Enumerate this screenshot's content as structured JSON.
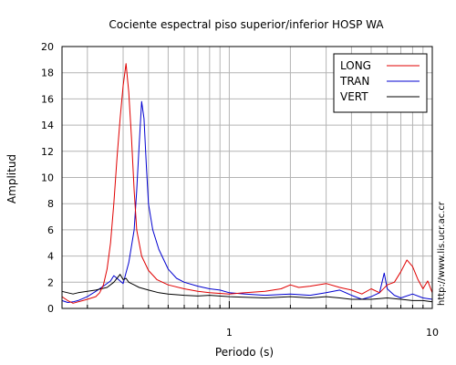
{
  "chart_data": {
    "type": "line",
    "title": "Cociente espectral piso superior/inferior  HOSP WA",
    "xlabel": "Periodo (s)",
    "ylabel": "Amplitud",
    "xscale": "log",
    "xlim": [
      0.15,
      10
    ],
    "ylim": [
      0,
      20
    ],
    "x_ticks": [
      1,
      10
    ],
    "x_tick_labels": [
      "1",
      "10"
    ],
    "y_ticks": [
      0,
      2,
      4,
      6,
      8,
      10,
      12,
      14,
      16,
      18,
      20
    ],
    "y_tick_labels": [
      "0",
      "2",
      "4",
      "6",
      "8",
      "10",
      "12",
      "14",
      "16",
      "18",
      "20"
    ],
    "grid": true,
    "legend_position": "top-right",
    "credit": "http://www.lis.ucr.ac.cr",
    "series": [
      {
        "name": "LONG",
        "color": "#e00000",
        "points": [
          [
            0.15,
            0.9
          ],
          [
            0.16,
            0.6
          ],
          [
            0.17,
            0.4
          ],
          [
            0.18,
            0.5
          ],
          [
            0.19,
            0.6
          ],
          [
            0.2,
            0.7
          ],
          [
            0.21,
            0.8
          ],
          [
            0.22,
            0.9
          ],
          [
            0.23,
            1.2
          ],
          [
            0.24,
            1.8
          ],
          [
            0.25,
            3.0
          ],
          [
            0.26,
            5.0
          ],
          [
            0.27,
            8.0
          ],
          [
            0.28,
            11.5
          ],
          [
            0.29,
            14.5
          ],
          [
            0.3,
            17.0
          ],
          [
            0.31,
            18.7
          ],
          [
            0.32,
            16.5
          ],
          [
            0.33,
            13.0
          ],
          [
            0.34,
            9.0
          ],
          [
            0.35,
            6.0
          ],
          [
            0.37,
            4.0
          ],
          [
            0.4,
            2.9
          ],
          [
            0.44,
            2.2
          ],
          [
            0.5,
            1.8
          ],
          [
            0.6,
            1.5
          ],
          [
            0.7,
            1.3
          ],
          [
            0.8,
            1.2
          ],
          [
            1.0,
            1.1
          ],
          [
            1.2,
            1.2
          ],
          [
            1.5,
            1.3
          ],
          [
            1.8,
            1.5
          ],
          [
            2.0,
            1.8
          ],
          [
            2.2,
            1.6
          ],
          [
            2.5,
            1.7
          ],
          [
            3.0,
            1.9
          ],
          [
            3.5,
            1.6
          ],
          [
            4.0,
            1.4
          ],
          [
            4.5,
            1.1
          ],
          [
            5.0,
            1.5
          ],
          [
            5.5,
            1.2
          ],
          [
            6.0,
            1.8
          ],
          [
            6.5,
            2.0
          ],
          [
            7.0,
            2.8
          ],
          [
            7.5,
            3.7
          ],
          [
            8.0,
            3.2
          ],
          [
            8.5,
            2.2
          ],
          [
            9.0,
            1.5
          ],
          [
            9.5,
            2.1
          ],
          [
            10.0,
            1.2
          ]
        ]
      },
      {
        "name": "TRAN",
        "color": "#0000d0",
        "points": [
          [
            0.15,
            0.6
          ],
          [
            0.16,
            0.45
          ],
          [
            0.17,
            0.5
          ],
          [
            0.18,
            0.6
          ],
          [
            0.2,
            0.9
          ],
          [
            0.22,
            1.3
          ],
          [
            0.24,
            1.7
          ],
          [
            0.26,
            2.1
          ],
          [
            0.27,
            2.5
          ],
          [
            0.28,
            2.3
          ],
          [
            0.3,
            1.9
          ],
          [
            0.32,
            3.5
          ],
          [
            0.34,
            6.0
          ],
          [
            0.35,
            9.0
          ],
          [
            0.36,
            12.5
          ],
          [
            0.37,
            15.8
          ],
          [
            0.38,
            14.5
          ],
          [
            0.39,
            11.0
          ],
          [
            0.4,
            8.0
          ],
          [
            0.42,
            6.0
          ],
          [
            0.45,
            4.5
          ],
          [
            0.5,
            3.0
          ],
          [
            0.55,
            2.3
          ],
          [
            0.6,
            2.0
          ],
          [
            0.7,
            1.7
          ],
          [
            0.8,
            1.5
          ],
          [
            0.9,
            1.4
          ],
          [
            1.0,
            1.2
          ],
          [
            1.2,
            1.1
          ],
          [
            1.5,
            1.0
          ],
          [
            2.0,
            1.1
          ],
          [
            2.5,
            1.0
          ],
          [
            3.0,
            1.2
          ],
          [
            3.5,
            1.4
          ],
          [
            4.0,
            1.0
          ],
          [
            4.5,
            0.7
          ],
          [
            5.0,
            0.9
          ],
          [
            5.5,
            1.2
          ],
          [
            5.8,
            2.7
          ],
          [
            6.0,
            1.5
          ],
          [
            6.5,
            1.0
          ],
          [
            7.0,
            0.8
          ],
          [
            8.0,
            1.1
          ],
          [
            9.0,
            0.8
          ],
          [
            10.0,
            0.7
          ]
        ]
      },
      {
        "name": "VERT",
        "color": "#000000",
        "points": [
          [
            0.15,
            1.3
          ],
          [
            0.16,
            1.2
          ],
          [
            0.17,
            1.1
          ],
          [
            0.18,
            1.2
          ],
          [
            0.2,
            1.3
          ],
          [
            0.22,
            1.4
          ],
          [
            0.25,
            1.6
          ],
          [
            0.27,
            2.0
          ],
          [
            0.28,
            2.3
          ],
          [
            0.29,
            2.6
          ],
          [
            0.3,
            2.2
          ],
          [
            0.31,
            2.3
          ],
          [
            0.32,
            2.0
          ],
          [
            0.34,
            1.8
          ],
          [
            0.36,
            1.6
          ],
          [
            0.4,
            1.4
          ],
          [
            0.45,
            1.2
          ],
          [
            0.5,
            1.1
          ],
          [
            0.6,
            1.0
          ],
          [
            0.7,
            0.95
          ],
          [
            0.8,
            1.0
          ],
          [
            1.0,
            0.9
          ],
          [
            1.2,
            0.85
          ],
          [
            1.5,
            0.8
          ],
          [
            2.0,
            0.9
          ],
          [
            2.5,
            0.8
          ],
          [
            3.0,
            0.9
          ],
          [
            3.5,
            0.8
          ],
          [
            4.0,
            0.7
          ],
          [
            5.0,
            0.7
          ],
          [
            6.0,
            0.8
          ],
          [
            7.0,
            0.7
          ],
          [
            8.0,
            0.6
          ],
          [
            9.0,
            0.6
          ],
          [
            10.0,
            0.5
          ]
        ]
      }
    ]
  }
}
